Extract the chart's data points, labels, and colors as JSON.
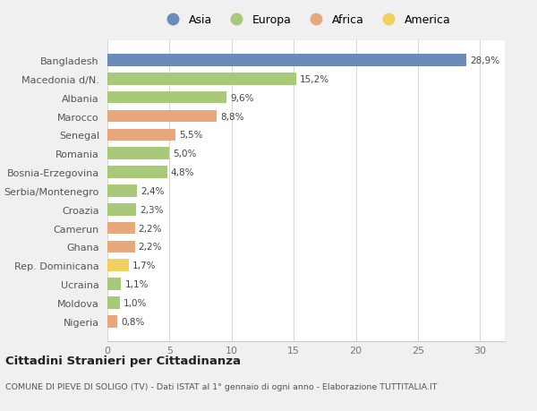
{
  "categories": [
    "Nigeria",
    "Moldova",
    "Ucraina",
    "Rep. Dominicana",
    "Ghana",
    "Camerun",
    "Croazia",
    "Serbia/Montenegro",
    "Bosnia-Erzegovina",
    "Romania",
    "Senegal",
    "Marocco",
    "Albania",
    "Macedonia d/N.",
    "Bangladesh"
  ],
  "values": [
    0.8,
    1.0,
    1.1,
    1.7,
    2.2,
    2.2,
    2.3,
    2.4,
    4.8,
    5.0,
    5.5,
    8.8,
    9.6,
    15.2,
    28.9
  ],
  "labels": [
    "0,8%",
    "1,0%",
    "1,1%",
    "1,7%",
    "2,2%",
    "2,2%",
    "2,3%",
    "2,4%",
    "4,8%",
    "5,0%",
    "5,5%",
    "8,8%",
    "9,6%",
    "15,2%",
    "28,9%"
  ],
  "colors": [
    "#e8a87c",
    "#a8c87a",
    "#a8c87a",
    "#f0d060",
    "#e8a87c",
    "#e8a87c",
    "#a8c87a",
    "#a8c87a",
    "#a8c87a",
    "#a8c87a",
    "#e8a87c",
    "#e8a87c",
    "#a8c87a",
    "#a8c87a",
    "#6b8cba"
  ],
  "legend_labels": [
    "Asia",
    "Europa",
    "Africa",
    "America"
  ],
  "legend_colors": [
    "#6b8cba",
    "#a8c87a",
    "#e8a87c",
    "#f0d060"
  ],
  "title": "Cittadini Stranieri per Cittadinanza",
  "subtitle": "COMUNE DI PIEVE DI SOLIGO (TV) - Dati ISTAT al 1° gennaio di ogni anno - Elaborazione TUTTITALIA.IT",
  "xlim": [
    0,
    32
  ],
  "xticks": [
    0,
    5,
    10,
    15,
    20,
    25,
    30
  ],
  "background_color": "#f0f0f0",
  "plot_background": "#ffffff",
  "bar_height": 0.65
}
